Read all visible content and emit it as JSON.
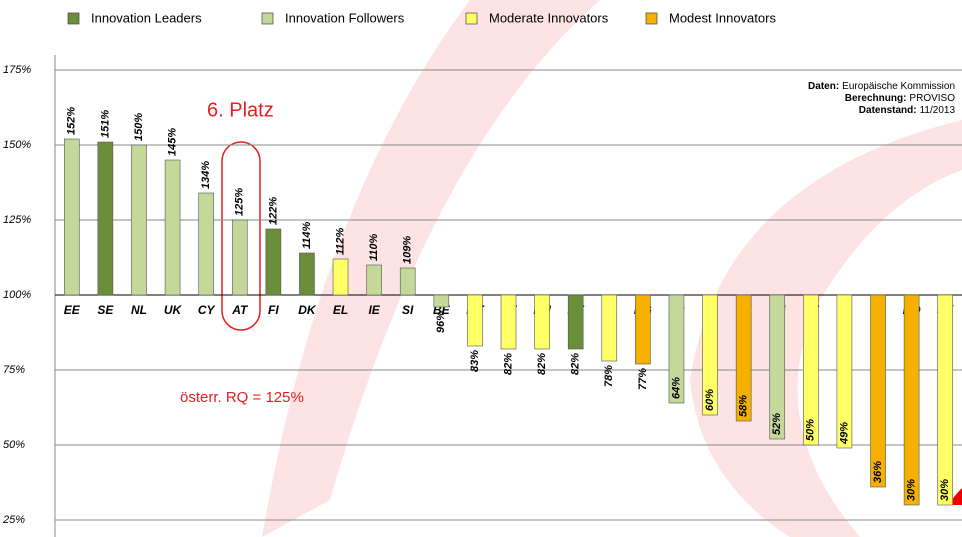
{
  "chart_data": {
    "type": "bar",
    "categories": [
      "EE",
      "SE",
      "NL",
      "UK",
      "CY",
      "AT",
      "FI",
      "DK",
      "EL",
      "IE",
      "SI",
      "BE",
      "MT",
      "PT",
      "HU",
      "DE",
      "ES",
      "BG",
      "FR",
      "IT",
      "LV",
      "LU",
      "CZ",
      "LT",
      "PL",
      "RO",
      "SK"
    ],
    "series": [
      {
        "name": "Innovation Leaders",
        "color": "#6b8e3a",
        "values": [
          null,
          151,
          null,
          null,
          null,
          null,
          122,
          114,
          null,
          null,
          null,
          null,
          null,
          null,
          null,
          82,
          null,
          null,
          null,
          null,
          null,
          null,
          null,
          null,
          null,
          null,
          null
        ],
        "value_labels": [
          null,
          "151%",
          null,
          null,
          null,
          null,
          "122%",
          "114%",
          null,
          null,
          null,
          null,
          null,
          null,
          null,
          "82%",
          null,
          null,
          null,
          null,
          null,
          null,
          null,
          null,
          null,
          null,
          null
        ]
      },
      {
        "name": "Innovation Followers",
        "color": "#c4d89a",
        "values": [
          152,
          null,
          150,
          145,
          134,
          125,
          null,
          null,
          null,
          110,
          109,
          96,
          null,
          null,
          null,
          null,
          null,
          null,
          64,
          null,
          null,
          52,
          null,
          null,
          null,
          null,
          null
        ],
        "value_labels": [
          "152%",
          null,
          "150%",
          "145%",
          "134%",
          "125%",
          null,
          null,
          null,
          "110%",
          "109%",
          "96%",
          null,
          null,
          null,
          null,
          null,
          null,
          "64%",
          null,
          null,
          "52%",
          null,
          null,
          null,
          null,
          null
        ]
      },
      {
        "name": "Moderate Innovators",
        "color": "#ffff66",
        "values": [
          null,
          null,
          null,
          null,
          null,
          null,
          null,
          null,
          112,
          null,
          null,
          null,
          83,
          82,
          82,
          null,
          78,
          null,
          null,
          60,
          null,
          null,
          50,
          49,
          null,
          null,
          30
        ],
        "value_labels": [
          null,
          null,
          null,
          null,
          null,
          null,
          null,
          null,
          "112%",
          null,
          null,
          null,
          "83%",
          "82%",
          "82%",
          null,
          "78%",
          null,
          null,
          "60%",
          null,
          null,
          "50%",
          "49%",
          null,
          null,
          "30%"
        ]
      },
      {
        "name": "Modest Innovators",
        "color": "#f5b000",
        "values": [
          null,
          null,
          null,
          null,
          null,
          null,
          null,
          null,
          null,
          null,
          null,
          null,
          null,
          null,
          null,
          null,
          null,
          77,
          null,
          null,
          58,
          null,
          null,
          null,
          36,
          30,
          null
        ],
        "value_labels": [
          null,
          null,
          null,
          null,
          null,
          null,
          null,
          null,
          null,
          null,
          null,
          null,
          null,
          null,
          null,
          null,
          null,
          "77%",
          null,
          null,
          "58%",
          null,
          null,
          null,
          "36%",
          "30%",
          null
        ]
      }
    ],
    "ylim": [
      25,
      175
    ],
    "yticks": [
      {
        "value": 25,
        "label": "25%"
      },
      {
        "value": 50,
        "label": "50%"
      },
      {
        "value": 75,
        "label": "75%"
      },
      {
        "value": 100,
        "label": "100%"
      },
      {
        "value": 125,
        "label": "125%"
      },
      {
        "value": 150,
        "label": "150%"
      },
      {
        "value": 175,
        "label": "175%"
      }
    ],
    "baseline": 100,
    "grid": true,
    "annotations": [
      "6. Platz",
      "österr. RQ = 125%"
    ],
    "source": [
      {
        "label": "Daten:",
        "text": "Europäische Kommission"
      },
      {
        "label": "Berechnung:",
        "text": "PROVISO"
      },
      {
        "label": "Datenstand:",
        "text": "11/2013"
      }
    ]
  }
}
